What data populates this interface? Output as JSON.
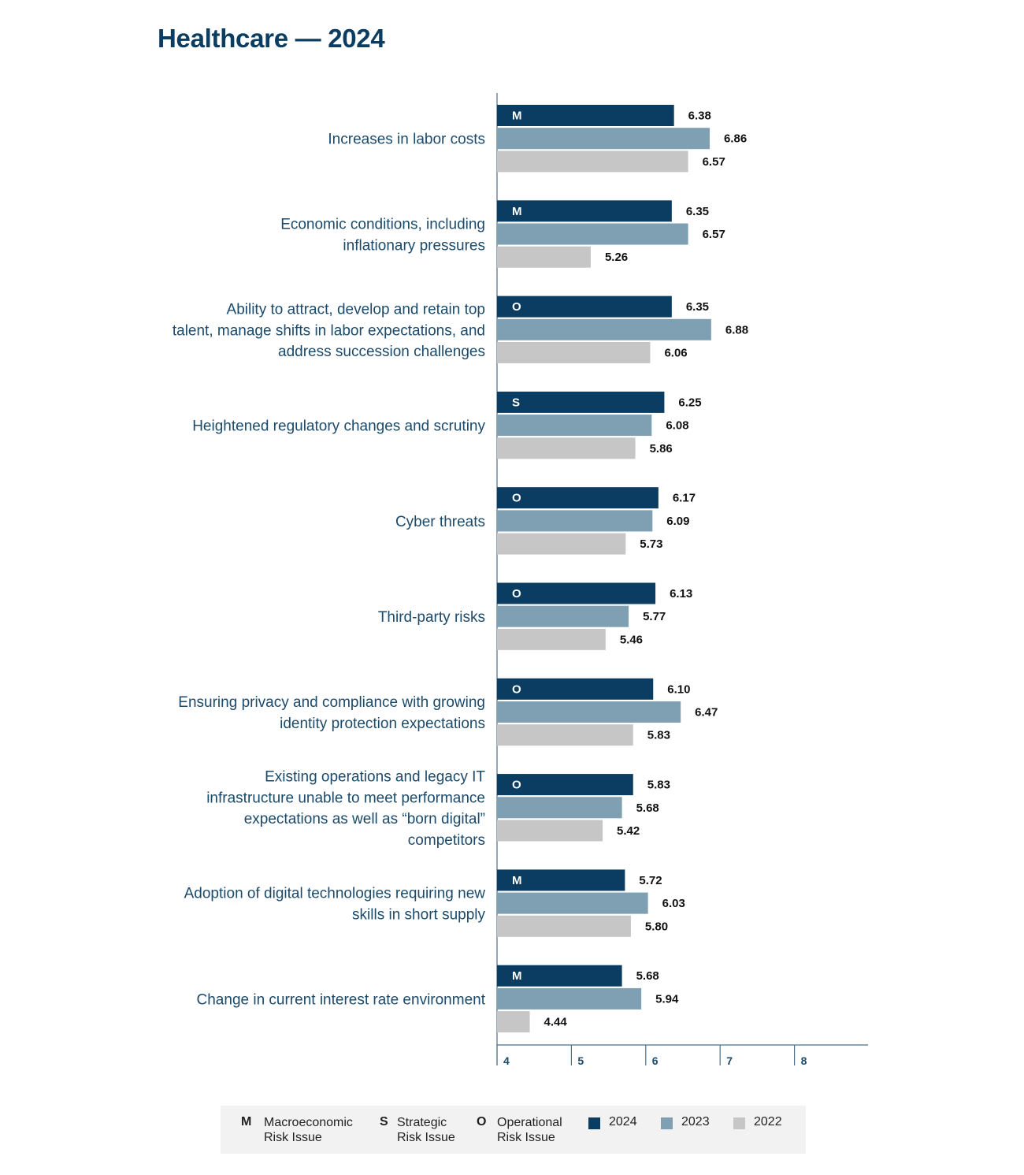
{
  "title": "Healthcare — 2024",
  "colors": {
    "y2024": "#0b3c61",
    "y2023": "#7f9fb3",
    "y2022": "#c6c6c6",
    "axis": "#4a6f8a"
  },
  "chart_data": {
    "type": "bar",
    "orientation": "horizontal",
    "xlim": [
      4,
      9
    ],
    "xticks": [
      "4",
      "5",
      "6",
      "7",
      "8"
    ],
    "categories": [
      [
        "Increases in labor costs"
      ],
      [
        "Economic conditions, including",
        "inflationary pressures"
      ],
      [
        "Ability to attract, develop and retain top",
        "talent, manage shifts in labor expectations, and",
        "address succession challenges"
      ],
      [
        "Heightened regulatory changes and scrutiny"
      ],
      [
        "Cyber threats"
      ],
      [
        "Third-party risks"
      ],
      [
        "Ensuring privacy and compliance with growing",
        "identity protection expectations"
      ],
      [
        "Existing operations and legacy IT",
        "infrastructure unable to meet performance",
        "expectations as well as “born digital”",
        "competitors"
      ],
      [
        "Adoption of digital technologies requiring new",
        "skills in short supply"
      ],
      [
        "Change in current interest rate environment"
      ]
    ],
    "risk_codes": [
      "M",
      "M",
      "O",
      "S",
      "O",
      "O",
      "O",
      "O",
      "M",
      "M"
    ],
    "series": [
      {
        "name": "2024",
        "values": [
          6.38,
          6.35,
          6.35,
          6.25,
          6.17,
          6.13,
          6.1,
          5.83,
          5.72,
          5.68
        ]
      },
      {
        "name": "2023",
        "values": [
          6.86,
          6.57,
          6.88,
          6.08,
          6.09,
          5.77,
          6.47,
          5.68,
          6.03,
          5.94
        ]
      },
      {
        "name": "2022",
        "values": [
          6.57,
          5.26,
          6.06,
          5.86,
          5.73,
          5.46,
          5.83,
          5.42,
          5.8,
          4.44
        ]
      }
    ],
    "value_labels": [
      [
        "6.38",
        "6.86",
        "6.57"
      ],
      [
        "6.35",
        "6.57",
        "5.26"
      ],
      [
        "6.35",
        "6.88",
        "6.06"
      ],
      [
        "6.25",
        "6.08",
        "5.86"
      ],
      [
        "6.17",
        "6.09",
        "5.73"
      ],
      [
        "6.13",
        "5.77",
        "5.46"
      ],
      [
        "6.10",
        "6.47",
        "5.83"
      ],
      [
        "5.83",
        "5.68",
        "5.42"
      ],
      [
        "5.72",
        "6.03",
        "5.80"
      ],
      [
        "5.68",
        "5.94",
        "4.44"
      ]
    ]
  },
  "legend": {
    "codes": [
      {
        "code": "M",
        "line1": "Macroeconomic",
        "line2": "Risk Issue"
      },
      {
        "code": "S",
        "line1": "Strategic",
        "line2": "Risk Issue"
      },
      {
        "code": "O",
        "line1": "Operational",
        "line2": "Risk Issue"
      }
    ],
    "years": [
      "2024",
      "2023",
      "2022"
    ]
  }
}
